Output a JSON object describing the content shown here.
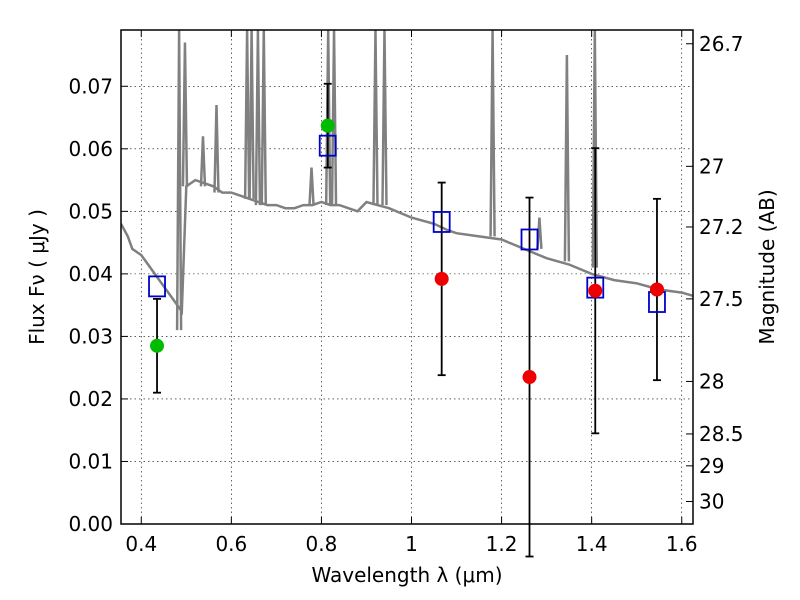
{
  "chart_data": {
    "type": "scatter",
    "xlabel": "Wavelength  λ (μm)",
    "ylabel": "Flux  Fν  ( μJy )",
    "ylabel_right": "Magnitude (AB)",
    "xlim": [
      0.355,
      1.625
    ],
    "ylim": [
      0.0,
      0.079
    ],
    "x_ticks": [
      0.4,
      0.6,
      0.8,
      1.0,
      1.2,
      1.4,
      1.6
    ],
    "x_tick_labels": [
      "0.4",
      "0.6",
      "0.8",
      "1",
      "1.2",
      "1.4",
      "1.6"
    ],
    "y_ticks": [
      0.0,
      0.01,
      0.02,
      0.03,
      0.04,
      0.05,
      0.06,
      0.07
    ],
    "y_tick_labels": [
      "0.00",
      "0.01",
      "0.02",
      "0.03",
      "0.04",
      "0.05",
      "0.06",
      "0.07"
    ],
    "mag_ticks": [
      {
        "label": "26.7",
        "flux": 0.0768
      },
      {
        "label": "27",
        "flux": 0.0572
      },
      {
        "label": "27.2",
        "flux": 0.0475
      },
      {
        "label": "27.5",
        "flux": 0.036
      },
      {
        "label": "28",
        "flux": 0.0228
      },
      {
        "label": "28.5",
        "flux": 0.0144
      },
      {
        "label": "29",
        "flux": 0.0093
      },
      {
        "label": "30",
        "flux": 0.0036
      }
    ],
    "grid": true,
    "colors": {
      "model": "#808080",
      "green": "#00bb00",
      "red": "#ee0000",
      "box": "#0000cc",
      "errorbar": "#000000"
    },
    "model_spectrum": {
      "x": [
        0.355,
        0.37,
        0.38,
        0.4,
        0.42,
        0.44,
        0.46,
        0.47,
        0.48,
        0.49,
        0.5,
        0.52,
        0.54,
        0.56,
        0.58,
        0.6,
        0.62,
        0.64,
        0.66,
        0.68,
        0.7,
        0.72,
        0.74,
        0.76,
        0.78,
        0.8,
        0.82,
        0.84,
        0.86,
        0.88,
        0.9,
        0.95,
        1.0,
        1.05,
        1.08,
        1.1,
        1.15,
        1.2,
        1.25,
        1.3,
        1.35,
        1.4,
        1.45,
        1.5,
        1.55,
        1.6,
        1.625
      ],
      "y": [
        0.048,
        0.046,
        0.044,
        0.043,
        0.041,
        0.039,
        0.037,
        0.036,
        0.035,
        0.034,
        0.054,
        0.055,
        0.0545,
        0.054,
        0.053,
        0.053,
        0.0525,
        0.052,
        0.0515,
        0.051,
        0.051,
        0.0505,
        0.0505,
        0.051,
        0.051,
        0.0515,
        0.051,
        0.051,
        0.0505,
        0.05,
        0.0515,
        0.0505,
        0.049,
        0.048,
        0.047,
        0.0465,
        0.046,
        0.0455,
        0.044,
        0.0425,
        0.0415,
        0.04,
        0.039,
        0.0385,
        0.0375,
        0.037,
        0.0365
      ],
      "lines": [
        {
          "x": 0.484,
          "top": 0.031,
          "peak": 0.079
        },
        {
          "x": 0.497,
          "top": 0.054,
          "peak": 0.077
        },
        {
          "x": 0.537,
          "top": 0.054,
          "peak": 0.062
        },
        {
          "x": 0.567,
          "top": 0.053,
          "peak": 0.067
        },
        {
          "x": 0.635,
          "top": 0.052,
          "peak": 0.079
        },
        {
          "x": 0.645,
          "top": 0.052,
          "peak": 0.079
        },
        {
          "x": 0.659,
          "top": 0.051,
          "peak": 0.079
        },
        {
          "x": 0.672,
          "top": 0.051,
          "peak": 0.079
        },
        {
          "x": 0.778,
          "top": 0.051,
          "peak": 0.057
        },
        {
          "x": 0.815,
          "top": 0.051,
          "peak": 0.079
        },
        {
          "x": 0.828,
          "top": 0.051,
          "peak": 0.079
        },
        {
          "x": 0.92,
          "top": 0.051,
          "peak": 0.079
        },
        {
          "x": 0.94,
          "top": 0.051,
          "peak": 0.079
        },
        {
          "x": 1.18,
          "top": 0.046,
          "peak": 0.079
        },
        {
          "x": 1.284,
          "top": 0.044,
          "peak": 0.049
        },
        {
          "x": 1.345,
          "top": 0.042,
          "peak": 0.075
        },
        {
          "x": 1.407,
          "top": 0.041,
          "peak": 0.079
        }
      ]
    },
    "model_photometry": {
      "x": [
        0.435,
        0.814,
        1.067,
        1.262,
        1.408,
        1.545
      ],
      "y": [
        0.038,
        0.0605,
        0.0483,
        0.0455,
        0.0378,
        0.0355
      ]
    },
    "observed_green": {
      "x": [
        0.435,
        0.814
      ],
      "y": [
        0.0285,
        0.0637
      ],
      "err": [
        0.0075,
        0.0067
      ]
    },
    "observed_red": {
      "x": [
        1.067,
        1.262,
        1.408,
        1.545
      ],
      "y": [
        0.0392,
        0.0235,
        0.0373,
        0.0375
      ],
      "err": [
        0.0154,
        0.0287,
        0.0228,
        0.0145
      ]
    }
  }
}
